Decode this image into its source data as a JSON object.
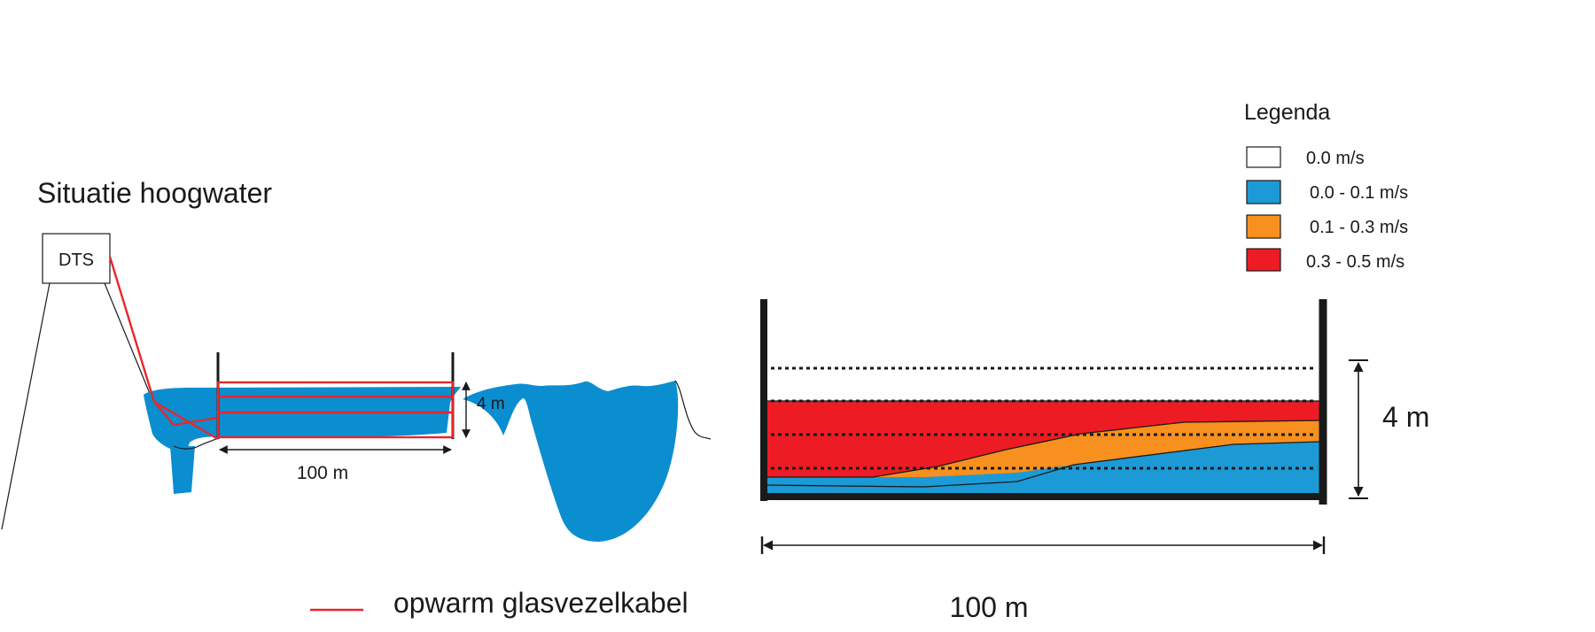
{
  "title": "Situatie hoogwater",
  "instrument_label": "DTS",
  "left_section": {
    "depth_label": "4 m",
    "length_label": "100 m"
  },
  "right_section": {
    "depth_label": "4 m",
    "length_label": "100 m"
  },
  "legend": {
    "title": "Legenda",
    "items": [
      {
        "label": "0.0  m/s",
        "color": "#ffffff"
      },
      {
        "label": "0.0 - 0.1 m/s",
        "color": "#1c9ad6"
      },
      {
        "label": "0.1 - 0.3 m/s",
        "color": "#f7901e"
      },
      {
        "label": "0.3 - 0.5 m/s",
        "color": "#ed1c24"
      }
    ]
  },
  "cable_legend": {
    "label": "opwarm glasvezelkabel",
    "color": "#e8262a"
  },
  "colors": {
    "water": "#0b8ed0",
    "cable": "#e8262a",
    "blue_band": "#1c9ad6",
    "orange_band": "#f7901e",
    "red_band": "#ed1c24",
    "outline": "#1a1a1a"
  }
}
